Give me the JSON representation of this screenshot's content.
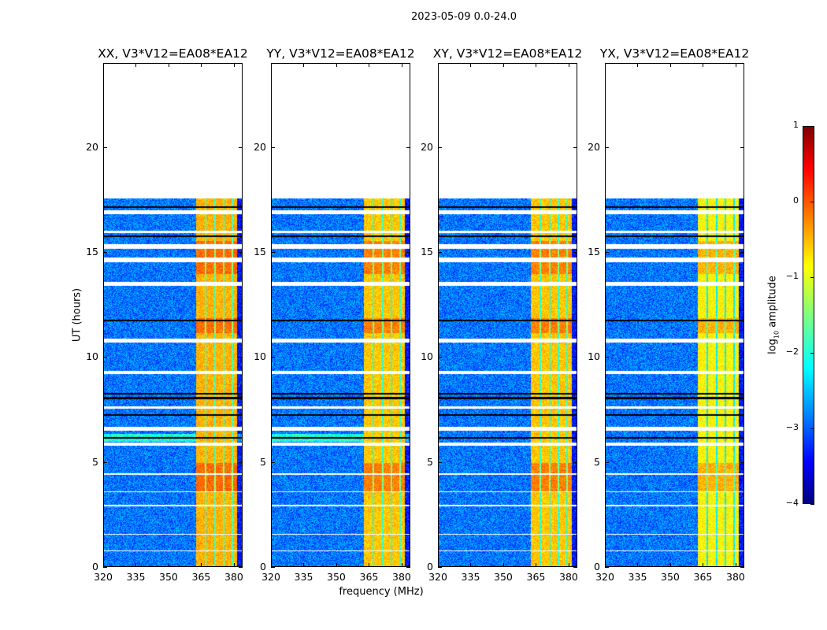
{
  "chart_data": {
    "type": "heatmap",
    "title": "2023-05-09 0.0-24.0",
    "xlabel": "frequency (MHz)",
    "ylabel": "UT (hours)",
    "xlim": [
      320,
      384
    ],
    "ylim": [
      0,
      24
    ],
    "xticks": [
      320,
      335,
      350,
      365,
      380
    ],
    "yticks": [
      0,
      5,
      10,
      15,
      20
    ],
    "panels": [
      {
        "title": "XX, V3*V12=EA08*EA12",
        "band_level": -0.5
      },
      {
        "title": "YY, V3*V12=EA08*EA12",
        "band_level": -0.6
      },
      {
        "title": "XY, V3*V12=EA08*EA12",
        "band_level": -0.6
      },
      {
        "title": "YX, V3*V12=EA08*EA12",
        "band_level": -0.85
      }
    ],
    "data_extent_hours": [
      0,
      17.6
    ],
    "background_level": -2.8,
    "rfi_band_mhz": [
      362,
      381
    ],
    "rfi_dividers_mhz": [
      366.5,
      370.8,
      374.8,
      378.6
    ],
    "flagged_gaps_hours": [
      [
        16.85,
        17.05
      ],
      [
        15.95,
        16.08
      ],
      [
        15.2,
        15.45
      ],
      [
        14.55,
        14.78
      ],
      [
        13.45,
        13.62
      ],
      [
        10.75,
        10.92
      ],
      [
        9.25,
        9.38
      ],
      [
        7.6,
        7.72
      ],
      [
        6.55,
        6.72
      ],
      [
        5.85,
        5.98
      ],
      [
        4.45,
        4.5
      ],
      [
        3.6,
        3.66
      ],
      [
        2.95,
        3.0
      ],
      [
        1.58,
        1.64
      ],
      [
        0.8,
        0.85
      ]
    ],
    "dropout_lines_hours": [
      17.2,
      15.8,
      11.8,
      8.3,
      8.1,
      7.3,
      6.2
    ],
    "colorbar": {
      "label": "log10 amplitude",
      "range": [
        -4,
        1
      ],
      "ticks": [
        1,
        0,
        -1,
        -2,
        -3,
        -4
      ]
    }
  }
}
